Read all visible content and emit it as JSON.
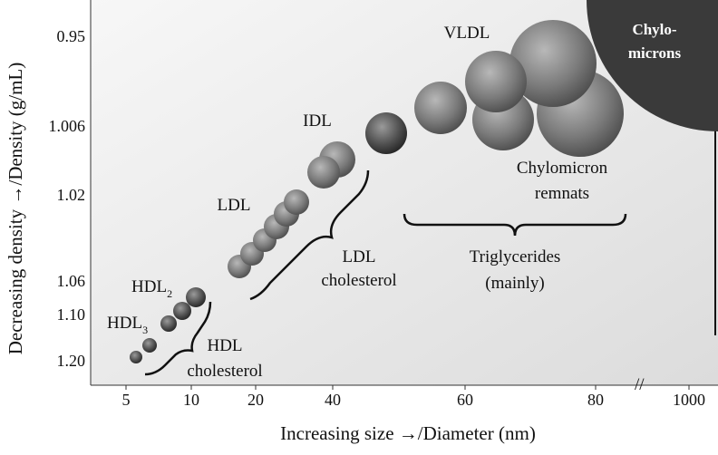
{
  "axes": {
    "x_title": "Increasing size →/Diameter (nm)",
    "y_title": "Decreasing density →/Density (g/mL)",
    "x_ticks": [
      "5",
      "10",
      "20",
      "40",
      "60",
      "80",
      "1000"
    ],
    "y_ticks": [
      "0.95",
      "1.006",
      "1.02",
      "1.06",
      "1.10",
      "1.20"
    ]
  },
  "particles": [
    {
      "text": "VLDL"
    },
    {
      "text": "IDL"
    },
    {
      "text": "LDL"
    },
    {
      "text": "HDL",
      "sub": "2"
    },
    {
      "text": "HDL",
      "sub": "3"
    }
  ],
  "chylomicrons": [
    "Chylo-",
    "microns"
  ],
  "remnants": [
    "Chylomicron",
    "remnats"
  ],
  "brackets": [
    [
      "Triglycerides",
      "(mainly)"
    ],
    [
      "LDL",
      "cholesterol"
    ],
    [
      "HDL",
      "cholesterol"
    ]
  ]
}
